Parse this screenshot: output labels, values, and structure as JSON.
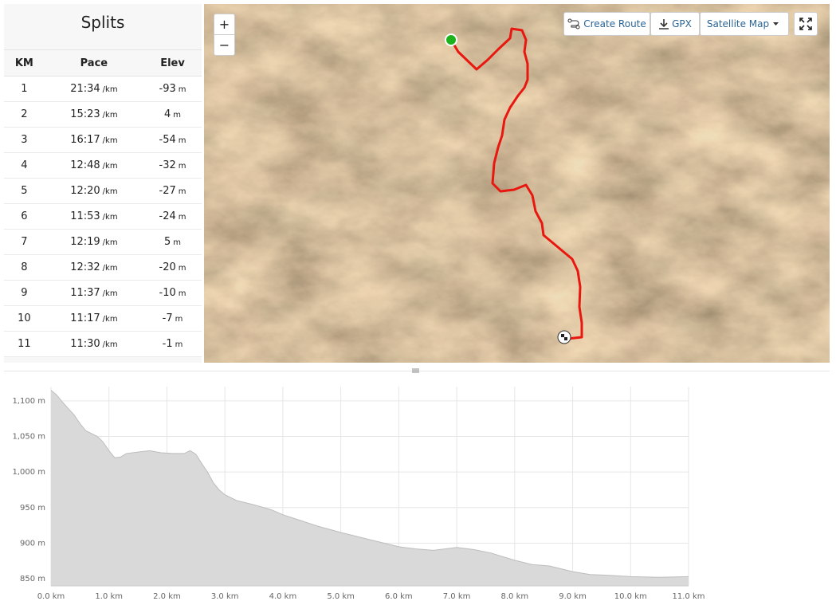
{
  "splits": {
    "title": "Splits",
    "columns": [
      "KM",
      "Pace",
      "Elev"
    ],
    "rows": [
      {
        "km": 1,
        "pace": "21:34",
        "pace_unit": "/km",
        "elev": -93,
        "elev_unit": "m"
      },
      {
        "km": 2,
        "pace": "15:23",
        "pace_unit": "/km",
        "elev": 4,
        "elev_unit": "m"
      },
      {
        "km": 3,
        "pace": "16:17",
        "pace_unit": "/km",
        "elev": -54,
        "elev_unit": "m"
      },
      {
        "km": 4,
        "pace": "12:48",
        "pace_unit": "/km",
        "elev": -32,
        "elev_unit": "m"
      },
      {
        "km": 5,
        "pace": "12:20",
        "pace_unit": "/km",
        "elev": -27,
        "elev_unit": "m"
      },
      {
        "km": 6,
        "pace": "11:53",
        "pace_unit": "/km",
        "elev": -24,
        "elev_unit": "m"
      },
      {
        "km": 7,
        "pace": "12:19",
        "pace_unit": "/km",
        "elev": 5,
        "elev_unit": "m"
      },
      {
        "km": 8,
        "pace": "12:32",
        "pace_unit": "/km",
        "elev": -20,
        "elev_unit": "m"
      },
      {
        "km": 9,
        "pace": "11:37",
        "pace_unit": "/km",
        "elev": -10,
        "elev_unit": "m"
      },
      {
        "km": 10,
        "pace": "11:17",
        "pace_unit": "/km",
        "elev": -7,
        "elev_unit": "m"
      },
      {
        "km": 11,
        "pace": "11:30",
        "pace_unit": "/km",
        "elev": -1,
        "elev_unit": "m"
      }
    ]
  },
  "map": {
    "zoom_in": "+",
    "zoom_out": "−",
    "create_route": "Create Route",
    "gpx": "GPX",
    "map_type": "Satellite Map"
  },
  "chart_data": {
    "type": "area",
    "x": [
      0,
      0.1,
      0.2,
      0.4,
      0.5,
      0.6,
      0.8,
      0.9,
      1.0,
      1.1,
      1.2,
      1.3,
      1.5,
      1.7,
      1.9,
      2.1,
      2.3,
      2.4,
      2.5,
      2.6,
      2.7,
      2.8,
      2.9,
      3.0,
      3.2,
      3.5,
      3.8,
      4.0,
      4.3,
      4.6,
      5.0,
      5.5,
      6.0,
      6.3,
      6.6,
      7.0,
      7.3,
      7.6,
      8.0,
      8.3,
      8.6,
      9.0,
      9.3,
      9.6,
      10.0,
      10.5,
      11.0
    ],
    "series": [
      {
        "name": "Elevation",
        "color": "#d9d9d9",
        "values": [
          1115,
          1108,
          1098,
          1080,
          1068,
          1058,
          1050,
          1042,
          1030,
          1020,
          1021,
          1026,
          1028,
          1030,
          1027,
          1026,
          1026,
          1030,
          1025,
          1012,
          1000,
          985,
          975,
          968,
          960,
          954,
          947,
          940,
          932,
          924,
          915,
          905,
          895,
          892,
          890,
          894,
          891,
          886,
          876,
          870,
          868,
          860,
          856,
          855,
          853,
          852,
          853
        ]
      }
    ],
    "xlim": [
      0,
      11
    ],
    "ylim": [
      840,
      1120
    ],
    "xticks": [
      {
        "value": 0,
        "label": "0.0 km"
      },
      {
        "value": 1,
        "label": "1.0 km"
      },
      {
        "value": 2,
        "label": "2.0 km"
      },
      {
        "value": 3,
        "label": "3.0 km"
      },
      {
        "value": 4,
        "label": "4.0 km"
      },
      {
        "value": 5,
        "label": "5.0 km"
      },
      {
        "value": 6,
        "label": "6.0 km"
      },
      {
        "value": 7,
        "label": "7.0 km"
      },
      {
        "value": 8,
        "label": "8.0 km"
      },
      {
        "value": 9,
        "label": "9.0 km"
      },
      {
        "value": 10,
        "label": "10.0 km"
      },
      {
        "value": 11,
        "label": "11.0 km"
      }
    ],
    "yticks": [
      {
        "value": 850,
        "label": "850 m"
      },
      {
        "value": 900,
        "label": "900 m"
      },
      {
        "value": 950,
        "label": "950 m"
      },
      {
        "value": 1000,
        "label": "1,000 m"
      },
      {
        "value": 1050,
        "label": "1,050 m"
      },
      {
        "value": 1100,
        "label": "1,100 m"
      }
    ],
    "grid": true
  }
}
